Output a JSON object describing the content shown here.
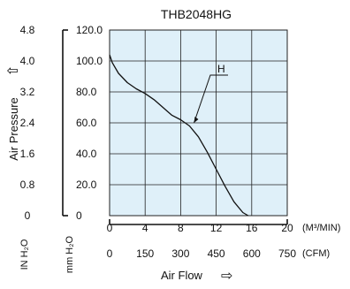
{
  "chart_data": {
    "type": "line",
    "title": "THB2048HG",
    "colors": {
      "plot_bg": "#dff0f9",
      "grid": "#222222",
      "curve": "#111111"
    },
    "grid": true,
    "y_axis": {
      "label": "Air Pressure",
      "arrow": "⇧",
      "primary_unit": "mm H₂O",
      "secondary_unit": "IN H₂O",
      "ylim": [
        0,
        120
      ],
      "ticks": [
        "0",
        "20.0",
        "40.0",
        "60.0",
        "80.0",
        "100.0",
        "120.0"
      ],
      "secondary_ticks": [
        "0",
        "0.8",
        "1.6",
        "2.4",
        "3.2",
        "4.0",
        "4.8"
      ]
    },
    "x_axis": {
      "label": "Air Flow",
      "arrow": "⇨",
      "primary_unit": "(M³/MIN)",
      "secondary_unit": "(CFM)",
      "xlim": [
        0,
        20
      ],
      "ticks": [
        "0",
        "4",
        "8",
        "12",
        "16",
        "20"
      ],
      "secondary_ticks": [
        "0",
        "150",
        "300",
        "450",
        "600",
        "750"
      ]
    },
    "series": [
      {
        "name": "H",
        "x": [
          0,
          0.3,
          1,
          2,
          3,
          4,
          5,
          6,
          7,
          8,
          9,
          10,
          11,
          12,
          13,
          14,
          15,
          15.6
        ],
        "y": [
          104,
          99,
          92,
          86,
          82,
          79,
          75,
          70,
          65,
          62,
          58,
          51,
          41,
          30,
          19,
          9,
          2,
          0
        ]
      }
    ],
    "annotations": [
      {
        "text": "H",
        "series": "H",
        "point_x": 9.5,
        "point_y": 60
      }
    ]
  }
}
